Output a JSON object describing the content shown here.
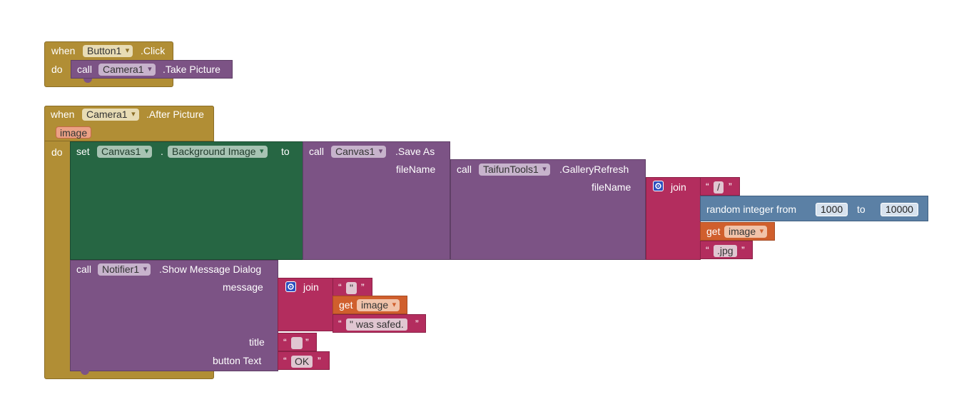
{
  "block1": {
    "when": "when",
    "component": "Button1",
    "event": ".Click",
    "do": "do",
    "call": "call",
    "call_component": "Camera1",
    "method": ".Take Picture"
  },
  "block2": {
    "when": "when",
    "component": "Camera1",
    "event": ".After Picture",
    "param": "image",
    "do": "do",
    "set": {
      "set": "set",
      "component": "Canvas1",
      "dot": ".",
      "property": "Background Image",
      "to": "to"
    },
    "save_as": {
      "call": "call",
      "component": "Canvas1",
      "method": ".Save As",
      "arg": "fileName"
    },
    "gallery_refresh": {
      "call": "call",
      "component": "TaifunTools1",
      "method": ".GalleryRefresh",
      "arg": "fileName"
    },
    "join1": {
      "label": "join",
      "str1": "/",
      "random": {
        "label": "random integer from",
        "from": "1000",
        "to_label": "to",
        "to": "10000"
      },
      "get_label": "get",
      "get_var": "image",
      "str2": ".jpg"
    },
    "notifier": {
      "call": "call",
      "component": "Notifier1",
      "method": ".Show Message Dialog",
      "message_label": "message",
      "title_label": "title",
      "button_label": "button Text",
      "join": {
        "label": "join",
        "str1": "\"",
        "get_label": "get",
        "get_var": "image",
        "str2": "\" was safed."
      },
      "title_value": "",
      "button_value": "OK"
    }
  },
  "quote_open": "“",
  "quote_close": "”",
  "colors": {
    "event": "#b18e35",
    "procedure": "#7c5385",
    "setter": "#266643",
    "text": "#b32d5e",
    "variable": "#d05f2d",
    "math": "#5b80a5"
  }
}
